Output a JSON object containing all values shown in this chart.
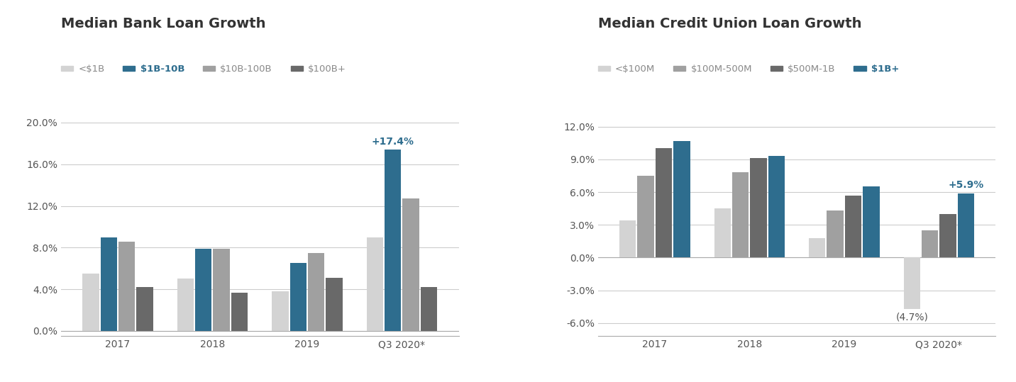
{
  "bank": {
    "title": "Median Bank Loan Growth",
    "legend_labels": [
      "<$1B",
      "$1B-10B",
      "$10B-100B",
      "$100B+"
    ],
    "legend_colors": [
      "#d3d3d3",
      "#2e6d8e",
      "#a0a0a0",
      "#696969"
    ],
    "legend_highlight": [
      false,
      true,
      false,
      false
    ],
    "categories": [
      "2017",
      "2018",
      "2019",
      "Q3 2020*"
    ],
    "series": {
      "<$1B": [
        0.055,
        0.05,
        0.038,
        0.09
      ],
      "$1B-10B": [
        0.09,
        0.079,
        0.065,
        0.174
      ],
      "$10B-100B": [
        0.086,
        0.079,
        0.075,
        0.127
      ],
      "$100B+": [
        0.042,
        0.037,
        0.051,
        0.042
      ]
    },
    "colors": [
      "#d3d3d3",
      "#2e6d8e",
      "#a0a0a0",
      "#696969"
    ],
    "ylim": [
      -0.005,
      0.215
    ],
    "yticks": [
      0.0,
      0.04,
      0.08,
      0.12,
      0.16,
      0.2
    ],
    "ytick_labels": [
      "0.0%",
      "4.0%",
      "8.0%",
      "12.0%",
      "16.0%",
      "20.0%"
    ],
    "annotation_series": "$1B-10B",
    "annotation_category": "Q3 2020*",
    "annotation_text": "+17.4%",
    "annotation_color": "#2e6d8e"
  },
  "cu": {
    "title": "Median Credit Union Loan Growth",
    "legend_labels": [
      "<$100M",
      "$100M-500M",
      "$500M-1B",
      "$1B+"
    ],
    "legend_colors": [
      "#d3d3d3",
      "#a0a0a0",
      "#696969",
      "#2e6d8e"
    ],
    "legend_highlight": [
      false,
      false,
      false,
      true
    ],
    "categories": [
      "2017",
      "2018",
      "2019",
      "Q3 2020*"
    ],
    "series": {
      "<$100M": [
        0.034,
        0.045,
        0.018,
        -0.047
      ],
      "$100M-500M": [
        0.075,
        0.078,
        0.043,
        0.025
      ],
      "$500M-1B": [
        0.1,
        0.091,
        0.057,
        0.04
      ],
      "$1B+": [
        0.107,
        0.093,
        0.065,
        0.059
      ]
    },
    "colors": [
      "#d3d3d3",
      "#a0a0a0",
      "#696969",
      "#2e6d8e"
    ],
    "ylim": [
      -0.072,
      0.138
    ],
    "yticks": [
      -0.06,
      -0.03,
      0.0,
      0.03,
      0.06,
      0.09,
      0.12
    ],
    "ytick_labels": [
      "-6.0%",
      "-3.0%",
      "0.0%",
      "3.0%",
      "6.0%",
      "9.0%",
      "12.0%"
    ],
    "annotation_series": "$1B+",
    "annotation_category": "Q3 2020*",
    "annotation_text": "+5.9%",
    "annotation_text2": "(4.7%)",
    "annotation_series2": "<$100M",
    "annotation_color": "#2e6d8e"
  },
  "bg_color": "#ffffff",
  "bar_width": 0.19,
  "title_fontsize": 14,
  "tick_fontsize": 10,
  "legend_fontsize": 9.5,
  "annotation_fontsize": 10
}
